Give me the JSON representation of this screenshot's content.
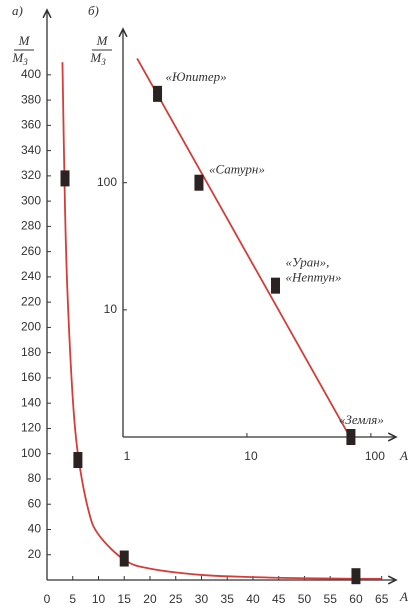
{
  "chart_data": [
    {
      "type": "scatter",
      "panel_label": "а)",
      "y_label": {
        "top": "M",
        "bottom": "M",
        "bottom_sub": "З"
      },
      "x_label": "A",
      "xlim": [
        0,
        67
      ],
      "ylim": [
        0,
        445
      ],
      "xticks": [
        0,
        5,
        10,
        15,
        20,
        25,
        30,
        35,
        40,
        45,
        50,
        55,
        60,
        65
      ],
      "yticks": [
        20,
        40,
        60,
        80,
        100,
        120,
        140,
        160,
        180,
        200,
        220,
        240,
        260,
        280,
        300,
        320,
        340,
        360,
        380,
        400
      ],
      "log": false,
      "series": [
        {
          "kind": "line",
          "color": "#d43d3a",
          "x": [
            3.0,
            3.5,
            4,
            5,
            6,
            8,
            10,
            15,
            20,
            30,
            40,
            50,
            60,
            65
          ],
          "values": [
            410,
            294,
            225,
            144,
            100,
            56,
            36,
            16,
            9,
            4,
            2.3,
            1.4,
            1,
            0.9
          ]
        },
        {
          "kind": "points",
          "color": "#2b2222",
          "x": [
            3.5,
            6,
            15,
            60
          ],
          "values": [
            318,
            95,
            17,
            3
          ]
        }
      ]
    },
    {
      "type": "scatter",
      "panel_label": "б)",
      "y_label": {
        "top": "M",
        "bottom": "M",
        "bottom_sub": "З"
      },
      "x_label": "A",
      "xlim": [
        1,
        148
      ],
      "ylim": [
        1,
        1400
      ],
      "xticks": [
        1,
        10,
        100
      ],
      "yticks": [
        10,
        100
      ],
      "log": true,
      "series": [
        {
          "kind": "line",
          "color": "#d43d3a",
          "x": [
            1.3,
            72
          ],
          "values": [
            950,
            0.9
          ]
        },
        {
          "kind": "points",
          "color": "#2b2222",
          "x": [
            1.9,
            4.1,
            17,
            69
          ],
          "values": [
            500,
            100,
            15.5,
            1
          ],
          "point_labels": [
            [
              "«Юпитер»"
            ],
            [
              "«Сатурн»"
            ],
            [
              "«Уран»,",
              "«Нептун»"
            ],
            [
              "«Земля»"
            ]
          ]
        }
      ]
    }
  ]
}
